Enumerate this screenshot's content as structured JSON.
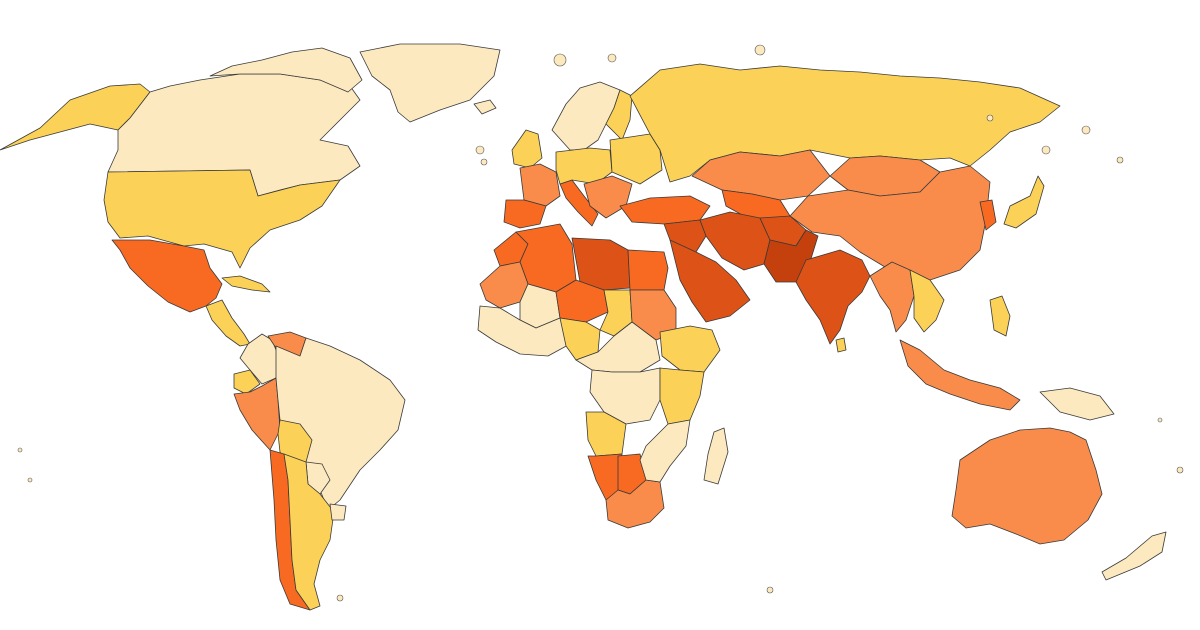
{
  "map": {
    "type": "choropleth",
    "projection": "world",
    "legend": "none",
    "scale_colors": [
      "#fce9c0",
      "#fbd257",
      "#f98c4b",
      "#f86a22",
      "#dd5216",
      "#c4410d"
    ],
    "background_color": "#ffffff",
    "border_color": "#3a3a3a",
    "regions": [
      {
        "name": "alaska",
        "level": 1
      },
      {
        "name": "canada",
        "level": 0
      },
      {
        "name": "arctic-islands",
        "level": 0
      },
      {
        "name": "greenland",
        "level": 0
      },
      {
        "name": "united-states",
        "level": 1
      },
      {
        "name": "mexico",
        "level": 3
      },
      {
        "name": "central-america",
        "level": 1
      },
      {
        "name": "cuba",
        "level": 1
      },
      {
        "name": "colombia",
        "level": 0
      },
      {
        "name": "venezuela",
        "level": 2
      },
      {
        "name": "ecuador",
        "level": 1
      },
      {
        "name": "peru",
        "level": 2
      },
      {
        "name": "brazil",
        "level": 0
      },
      {
        "name": "bolivia",
        "level": 1
      },
      {
        "name": "paraguay",
        "level": 0
      },
      {
        "name": "chile",
        "level": 3
      },
      {
        "name": "argentina",
        "level": 1
      },
      {
        "name": "uruguay",
        "level": 0
      },
      {
        "name": "iceland",
        "level": 0
      },
      {
        "name": "scandinavia",
        "level": 0
      },
      {
        "name": "finland",
        "level": 1
      },
      {
        "name": "uk-ireland",
        "level": 1
      },
      {
        "name": "france",
        "level": 2
      },
      {
        "name": "iberia",
        "level": 3
      },
      {
        "name": "italy",
        "level": 3
      },
      {
        "name": "central-europe",
        "level": 1
      },
      {
        "name": "eastern-europe",
        "level": 1
      },
      {
        "name": "balkans",
        "level": 2
      },
      {
        "name": "turkey",
        "level": 3
      },
      {
        "name": "russia",
        "level": 1
      },
      {
        "name": "kazakhstan",
        "level": 2
      },
      {
        "name": "central-asia",
        "level": 3
      },
      {
        "name": "mongolia",
        "level": 2
      },
      {
        "name": "china",
        "level": 2
      },
      {
        "name": "korea",
        "level": 3
      },
      {
        "name": "japan",
        "level": 1
      },
      {
        "name": "middle-east",
        "level": 4
      },
      {
        "name": "arabia",
        "level": 4
      },
      {
        "name": "iran",
        "level": 4
      },
      {
        "name": "afghanistan",
        "level": 4
      },
      {
        "name": "pakistan",
        "level": 5
      },
      {
        "name": "india",
        "level": 4
      },
      {
        "name": "southeast-asia",
        "level": 2
      },
      {
        "name": "indochina",
        "level": 1
      },
      {
        "name": "indonesia",
        "level": 2
      },
      {
        "name": "philippines",
        "level": 1
      },
      {
        "name": "new-guinea",
        "level": 0
      },
      {
        "name": "australia",
        "level": 2
      },
      {
        "name": "new-zealand",
        "level": 0
      },
      {
        "name": "morocco",
        "level": 3
      },
      {
        "name": "algeria",
        "level": 3
      },
      {
        "name": "libya",
        "level": 4
      },
      {
        "name": "egypt",
        "level": 3
      },
      {
        "name": "mauritania",
        "level": 2
      },
      {
        "name": "mali",
        "level": 0
      },
      {
        "name": "niger",
        "level": 3
      },
      {
        "name": "chad",
        "level": 1
      },
      {
        "name": "sudan",
        "level": 2
      },
      {
        "name": "ethiopia",
        "level": 1
      },
      {
        "name": "west-africa",
        "level": 0
      },
      {
        "name": "nigeria",
        "level": 1
      },
      {
        "name": "central-africa",
        "level": 0
      },
      {
        "name": "drc",
        "level": 0
      },
      {
        "name": "east-africa",
        "level": 1
      },
      {
        "name": "angola",
        "level": 1
      },
      {
        "name": "namibia",
        "level": 3
      },
      {
        "name": "botswana",
        "level": 3
      },
      {
        "name": "south-africa",
        "level": 2
      },
      {
        "name": "mozambique",
        "level": 0
      },
      {
        "name": "madagascar",
        "level": 0
      },
      {
        "name": "sri-lanka",
        "level": 1
      }
    ]
  }
}
